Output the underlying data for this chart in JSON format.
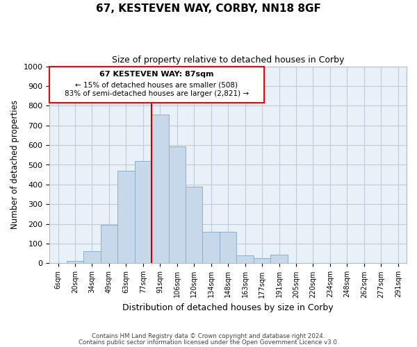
{
  "title": "67, KESTEVEN WAY, CORBY, NN18 8GF",
  "subtitle": "Size of property relative to detached houses in Corby",
  "xlabel": "Distribution of detached houses by size in Corby",
  "ylabel": "Number of detached properties",
  "bar_labels": [
    "6sqm",
    "20sqm",
    "34sqm",
    "49sqm",
    "63sqm",
    "77sqm",
    "91sqm",
    "106sqm",
    "120sqm",
    "134sqm",
    "148sqm",
    "163sqm",
    "177sqm",
    "191sqm",
    "205sqm",
    "220sqm",
    "234sqm",
    "248sqm",
    "262sqm",
    "277sqm",
    "291sqm"
  ],
  "bar_values": [
    3,
    13,
    62,
    195,
    470,
    520,
    755,
    595,
    390,
    160,
    160,
    42,
    25,
    44,
    3,
    0,
    0,
    0,
    0,
    0,
    0
  ],
  "bar_color": "#c8d8eb",
  "bar_edge_color": "#8eafc8",
  "vline_x": 6.0,
  "vline_color": "#cc0000",
  "ylim": [
    0,
    1000
  ],
  "yticks": [
    0,
    100,
    200,
    300,
    400,
    500,
    600,
    700,
    800,
    900,
    1000
  ],
  "annotation_title": "67 KESTEVEN WAY: 87sqm",
  "annotation_line1": "← 15% of detached houses are smaller (508)",
  "annotation_line2": "83% of semi-detached houses are larger (2,821) →",
  "footer1": "Contains HM Land Registry data © Crown copyright and database right 2024.",
  "footer2": "Contains public sector information licensed under the Open Government Licence v3.0.",
  "background_color": "#ffffff",
  "plot_bg_color": "#e8f0f8",
  "grid_color": "#c0ccd8"
}
